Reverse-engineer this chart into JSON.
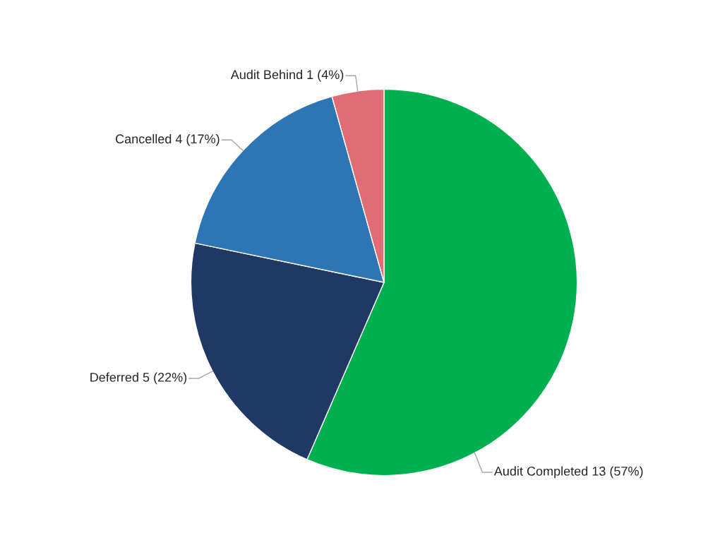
{
  "chart_data": {
    "type": "pie",
    "categories": [
      "Audit Completed",
      "Deferred",
      "Cancelled",
      "Audit Behind"
    ],
    "values": [
      13,
      5,
      4,
      1
    ],
    "value_labels": [
      "13 (57%)",
      "5 (22%)",
      "4 (17%)",
      "1 (4%)"
    ],
    "colors": [
      "#00b050",
      "#203864",
      "#2e75b6",
      "#e06c75"
    ],
    "legend": false
  }
}
